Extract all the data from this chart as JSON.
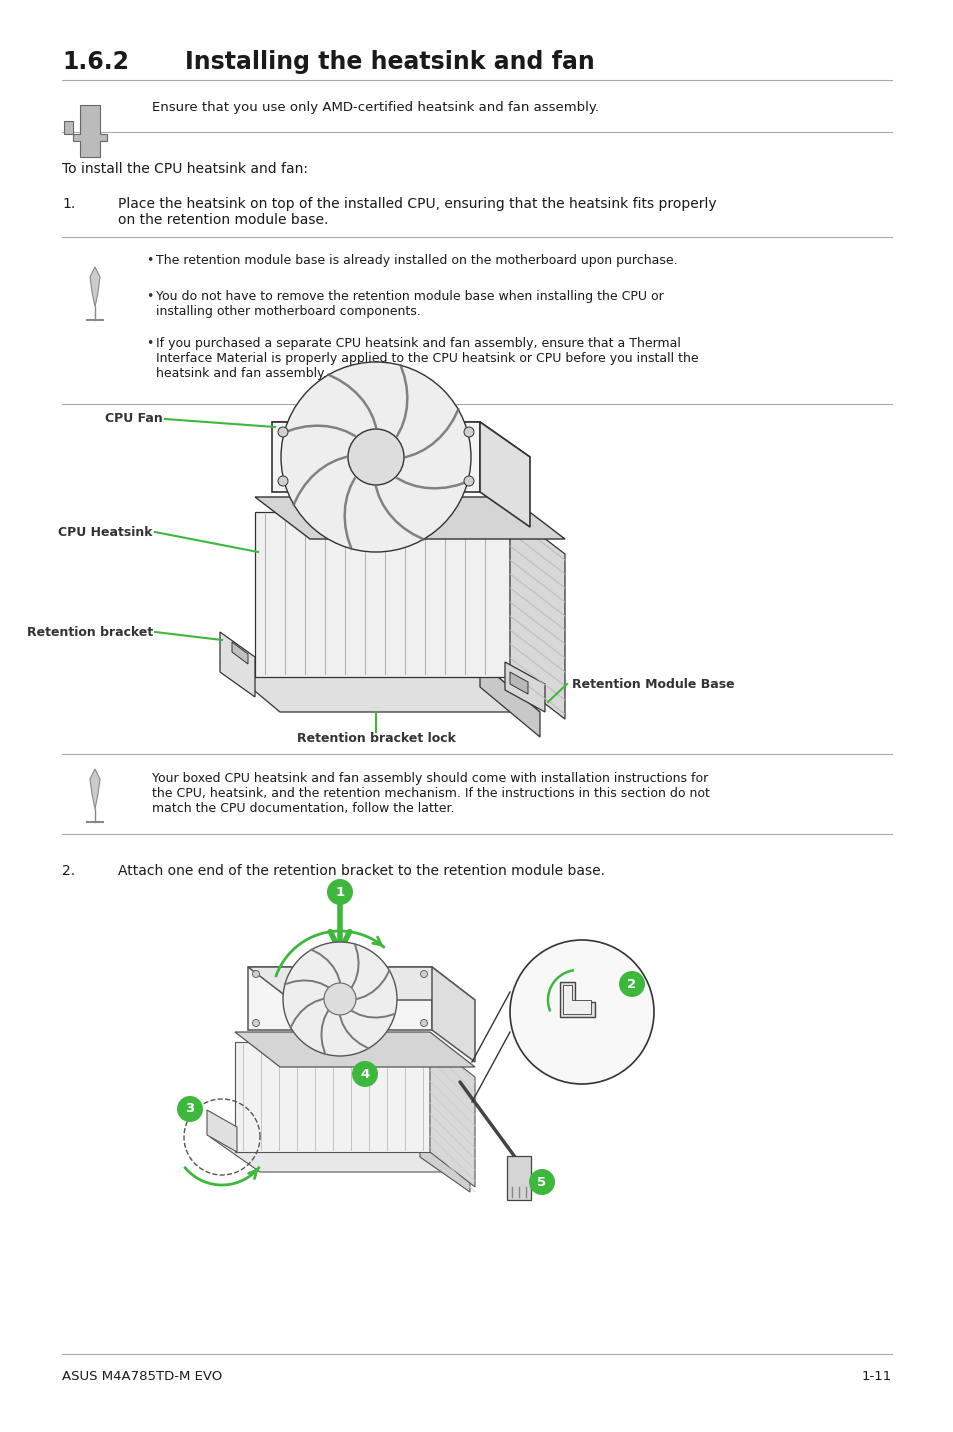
{
  "title_num": "1.6.2",
  "title_text": "Installing the heatsink and fan",
  "bg_color": "#ffffff",
  "text_color": "#1a1a1a",
  "footer_left": "ASUS M4A785TD-M EVO",
  "footer_right": "1-11",
  "warning_text": "Ensure that you use only AMD-certified heatsink and fan assembly.",
  "intro_text": "To install the CPU heatsink and fan:",
  "step1_num": "1.",
  "step1_text": "Place the heatsink on top of the installed CPU, ensuring that the heatsink fits properly\non the retention module base.",
  "note_bullets": [
    "The retention module base is already installed on the motherboard upon purchase.",
    "You do not have to remove the retention module base when installing the CPU or\ninstalling other motherboard components.",
    "If you purchased a separate CPU heatsink and fan assembly, ensure that a Thermal\nInterface Material is properly applied to the CPU heatsink or CPU before you install the\nheatsink and fan assembly."
  ],
  "note2_text": "Your boxed CPU heatsink and fan assembly should come with installation instructions for\nthe CPU, heatsink, and the retention mechanism. If the instructions in this section do not\nmatch the CPU documentation, follow the latter.",
  "step2_num": "2.",
  "step2_text": "Attach one end of the retention bracket to the retention module base.",
  "label_cpu_fan": "CPU Fan",
  "label_cpu_heatsink": "CPU Heatsink",
  "label_retention_bracket": "Retention bracket",
  "label_retention_module_base": "Retention Module Base",
  "label_retention_bracket_lock": "Retention bracket lock",
  "green": "#3db83d",
  "dark": "#333333",
  "gray": "#888888",
  "lightgray": "#cccccc"
}
